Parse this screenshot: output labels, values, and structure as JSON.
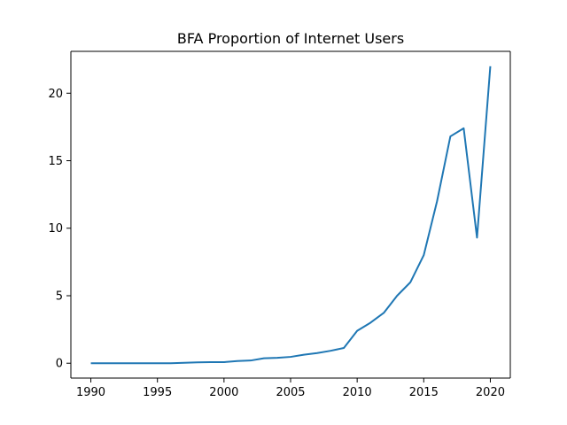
{
  "chart_data": {
    "type": "line",
    "title": "BFA Proportion of Internet Users",
    "xlabel": "",
    "ylabel": "",
    "xlim": [
      1988.5,
      2021.5
    ],
    "ylim": [
      -1.1,
      23.1
    ],
    "xticks": [
      1990,
      1995,
      2000,
      2005,
      2010,
      2015,
      2020
    ],
    "yticks": [
      0,
      5,
      10,
      15,
      20
    ],
    "grid": false,
    "legend": "none",
    "series": [
      {
        "color": "#1f77b4",
        "x": [
          1990,
          1991,
          1992,
          1993,
          1994,
          1995,
          1996,
          1997,
          1998,
          1999,
          2000,
          2001,
          2002,
          2003,
          2004,
          2005,
          2006,
          2007,
          2008,
          2009,
          2010,
          2011,
          2012,
          2013,
          2014,
          2015,
          2016,
          2017,
          2018,
          2019,
          2020
        ],
        "y": [
          0,
          0,
          0,
          0,
          0,
          0,
          0,
          0.03,
          0.06,
          0.08,
          0.08,
          0.16,
          0.2,
          0.37,
          0.4,
          0.47,
          0.63,
          0.75,
          0.92,
          1.13,
          2.4,
          3.0,
          3.73,
          5.0,
          6.0,
          8.0,
          12.0,
          16.8,
          17.4,
          9.3,
          22.0
        ]
      }
    ]
  }
}
